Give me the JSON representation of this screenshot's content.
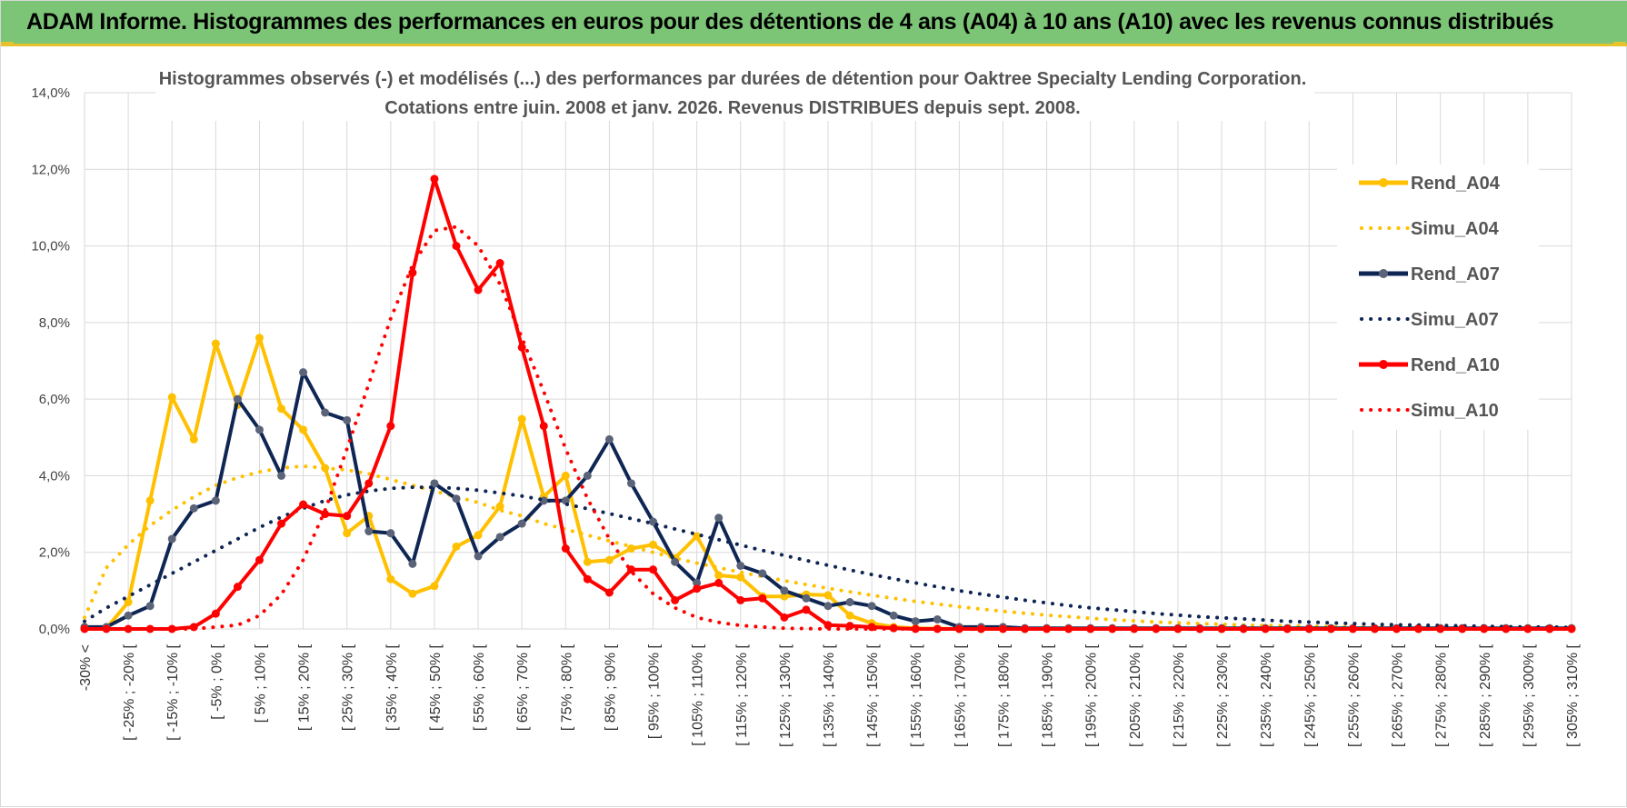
{
  "banner": {
    "title": "ADAM Informe. Histogrammes des performances en euros pour des détentions de 4 ans (A04) à 10 ans (A10) avec les revenus connus distribués"
  },
  "colors": {
    "banner_bg": "#7cc576",
    "accent": "#e8c22c",
    "A04": "#ffc000",
    "A07": "#0f2654",
    "A10": "#ff0000",
    "marker_A07": "#5a6378"
  },
  "chart_data": {
    "type": "line",
    "title_line1": "Histogrammes observés (-) et modélisés (...) des performances par durées de détention pour Oaktree Specialty Lending Corporation.",
    "title_line2": "Cotations entre juin. 2008 et janv. 2026. Revenus DISTRIBUES depuis sept. 2008.",
    "ylim": [
      0,
      14
    ],
    "y_ticks": [
      {
        "value": 0,
        "label": "0,0%"
      },
      {
        "value": 2,
        "label": "2,0%"
      },
      {
        "value": 4,
        "label": "4,0%"
      },
      {
        "value": 6,
        "label": "6,0%"
      },
      {
        "value": 8,
        "label": "8,0%"
      },
      {
        "value": 10,
        "label": "10,0%"
      },
      {
        "value": 12,
        "label": "12,0%"
      },
      {
        "value": 14,
        "label": "14,0%"
      }
    ],
    "x_labels": [
      "-30% <",
      "[ -25% ; -20% [",
      "[ -15% ; -10% [",
      "[ -5% ; 0% [",
      "[ 5% ; 10% [",
      "[ 15% ; 20% [",
      "[ 25% ; 30% [",
      "[ 35% ; 40% [",
      "[ 45% ; 50% [",
      "[ 55% ; 60% [",
      "[ 65% ; 70% [",
      "[ 75% ; 80% [",
      "[ 85% ; 90% [",
      "[ 95% ; 100% [",
      "[ 105% ; 110% [",
      "[ 115% ; 120% [",
      "[ 125% ; 130% [",
      "[ 135% ; 140% [",
      "[ 145% ; 150% [",
      "[ 155% ; 160% [",
      "[ 165% ; 170% [",
      "[ 175% ; 180% [",
      "[ 185% ; 190% [",
      "[ 195% ; 200% [",
      "[ 205% ; 210% [",
      "[ 215% ; 220% [",
      "[ 225% ; 230% [",
      "[ 235% ; 240% [",
      "[ 245% ; 250% [",
      "[ 255% ; 260% [",
      "[ 265% ; 270% [",
      "[ 275% ; 280% [",
      "[ 285% ; 290% [",
      "[ 295% ; 300% [",
      "[ 305% ; 310% ["
    ],
    "num_bins": 69,
    "series": [
      {
        "name": "Rend_A04",
        "style": "solid",
        "color": "#ffc000",
        "marker": "#ffc000",
        "values": [
          0.05,
          0.02,
          0.7,
          3.35,
          6.05,
          4.95,
          7.45,
          5.85,
          7.6,
          5.75,
          5.2,
          4.2,
          2.5,
          2.95,
          1.3,
          0.92,
          1.12,
          2.15,
          2.45,
          3.2,
          5.48,
          3.45,
          4.0,
          1.75,
          1.8,
          2.1,
          2.2,
          1.85,
          2.42,
          1.4,
          1.35,
          0.85,
          0.85,
          0.9,
          0.88,
          0.35,
          0.15,
          0.05,
          0.02,
          0.01,
          0,
          0,
          0,
          0,
          0,
          0,
          0,
          0,
          0,
          0,
          0,
          0,
          0,
          0,
          0,
          0,
          0,
          0,
          0,
          0,
          0,
          0,
          0,
          0,
          0,
          0,
          0,
          0,
          0
        ]
      },
      {
        "name": "Simu_A04",
        "style": "dotted",
        "color": "#ffc000",
        "values": [
          0.3,
          1.6,
          2.2,
          2.7,
          3.1,
          3.45,
          3.75,
          3.95,
          4.1,
          4.2,
          4.25,
          4.2,
          4.15,
          4.05,
          3.9,
          3.75,
          3.6,
          3.45,
          3.3,
          3.1,
          2.95,
          2.75,
          2.6,
          2.45,
          2.3,
          2.15,
          2.0,
          1.85,
          1.72,
          1.6,
          1.48,
          1.37,
          1.26,
          1.16,
          1.06,
          0.97,
          0.88,
          0.8,
          0.72,
          0.65,
          0.58,
          0.52,
          0.46,
          0.41,
          0.36,
          0.32,
          0.28,
          0.24,
          0.21,
          0.18,
          0.16,
          0.14,
          0.12,
          0.1,
          0.09,
          0.08,
          0.07,
          0.06,
          0.05,
          0.04,
          0.04,
          0.03,
          0.03,
          0.02,
          0.02,
          0.02,
          0.01,
          0.01,
          0.01
        ]
      },
      {
        "name": "Rend_A07",
        "style": "solid",
        "color": "#0f2654",
        "marker": "#5a6378",
        "values": [
          0.05,
          0.05,
          0.35,
          0.6,
          2.35,
          3.15,
          3.35,
          6.0,
          5.2,
          4.0,
          6.7,
          5.65,
          5.45,
          2.55,
          2.5,
          1.7,
          3.8,
          3.4,
          1.9,
          2.4,
          2.75,
          3.35,
          3.35,
          4.0,
          4.95,
          3.8,
          2.8,
          1.75,
          1.2,
          2.9,
          1.65,
          1.45,
          1.0,
          0.8,
          0.6,
          0.7,
          0.6,
          0.35,
          0.2,
          0.25,
          0.05,
          0.05,
          0.05,
          0.02,
          0.02,
          0.02,
          0.02,
          0.02,
          0.02,
          0.02,
          0.02,
          0.02,
          0.02,
          0.02,
          0.02,
          0.02,
          0.02,
          0.02,
          0.02,
          0.02,
          0.02,
          0.02,
          0.02,
          0.02,
          0.02,
          0.02,
          0.02,
          0.02,
          0.02
        ]
      },
      {
        "name": "Simu_A07",
        "style": "dotted",
        "color": "#0f2654",
        "values": [
          0.2,
          0.55,
          0.85,
          1.15,
          1.45,
          1.75,
          2.05,
          2.35,
          2.65,
          2.92,
          3.15,
          3.35,
          3.5,
          3.6,
          3.67,
          3.7,
          3.7,
          3.67,
          3.62,
          3.55,
          3.47,
          3.37,
          3.26,
          3.14,
          3.01,
          2.88,
          2.75,
          2.61,
          2.47,
          2.33,
          2.19,
          2.05,
          1.92,
          1.79,
          1.66,
          1.54,
          1.42,
          1.31,
          1.2,
          1.1,
          1.0,
          0.91,
          0.83,
          0.75,
          0.68,
          0.61,
          0.55,
          0.5,
          0.45,
          0.4,
          0.36,
          0.32,
          0.29,
          0.26,
          0.23,
          0.2,
          0.18,
          0.16,
          0.14,
          0.12,
          0.11,
          0.1,
          0.09,
          0.08,
          0.07,
          0.06,
          0.05,
          0.05,
          0.04
        ]
      },
      {
        "name": "Rend_A10",
        "style": "solid",
        "color": "#ff0000",
        "marker": "#ff0000",
        "values": [
          0,
          0,
          0,
          0,
          0,
          0.05,
          0.4,
          1.1,
          1.8,
          2.75,
          3.25,
          3.0,
          2.95,
          3.8,
          5.3,
          9.3,
          11.75,
          10.0,
          8.85,
          9.55,
          7.35,
          5.3,
          2.1,
          1.3,
          0.95,
          1.55,
          1.55,
          0.75,
          1.05,
          1.2,
          0.75,
          0.8,
          0.3,
          0.5,
          0.1,
          0.08,
          0.05,
          0.02,
          0,
          0,
          0,
          0,
          0,
          0,
          0,
          0,
          0,
          0,
          0,
          0,
          0,
          0,
          0,
          0,
          0,
          0,
          0,
          0,
          0,
          0,
          0,
          0,
          0,
          0,
          0,
          0,
          0,
          0,
          0
        ]
      },
      {
        "name": "Simu_A10",
        "style": "dotted",
        "color": "#ff0000",
        "values": [
          0,
          0,
          0,
          0,
          0,
          0,
          0.05,
          0.1,
          0.35,
          0.9,
          1.8,
          3.1,
          4.7,
          6.4,
          8.1,
          9.5,
          10.4,
          10.5,
          10.0,
          9.0,
          7.6,
          6.2,
          4.7,
          3.4,
          2.35,
          1.5,
          0.92,
          0.55,
          0.3,
          0.17,
          0.09,
          0.05,
          0.02,
          0.01,
          0,
          0,
          0,
          0,
          0,
          0,
          0,
          0,
          0,
          0,
          0,
          0,
          0,
          0,
          0,
          0,
          0,
          0,
          0,
          0,
          0,
          0,
          0,
          0,
          0,
          0,
          0,
          0,
          0,
          0,
          0,
          0,
          0,
          0,
          0
        ]
      }
    ],
    "legend_position": "right"
  }
}
